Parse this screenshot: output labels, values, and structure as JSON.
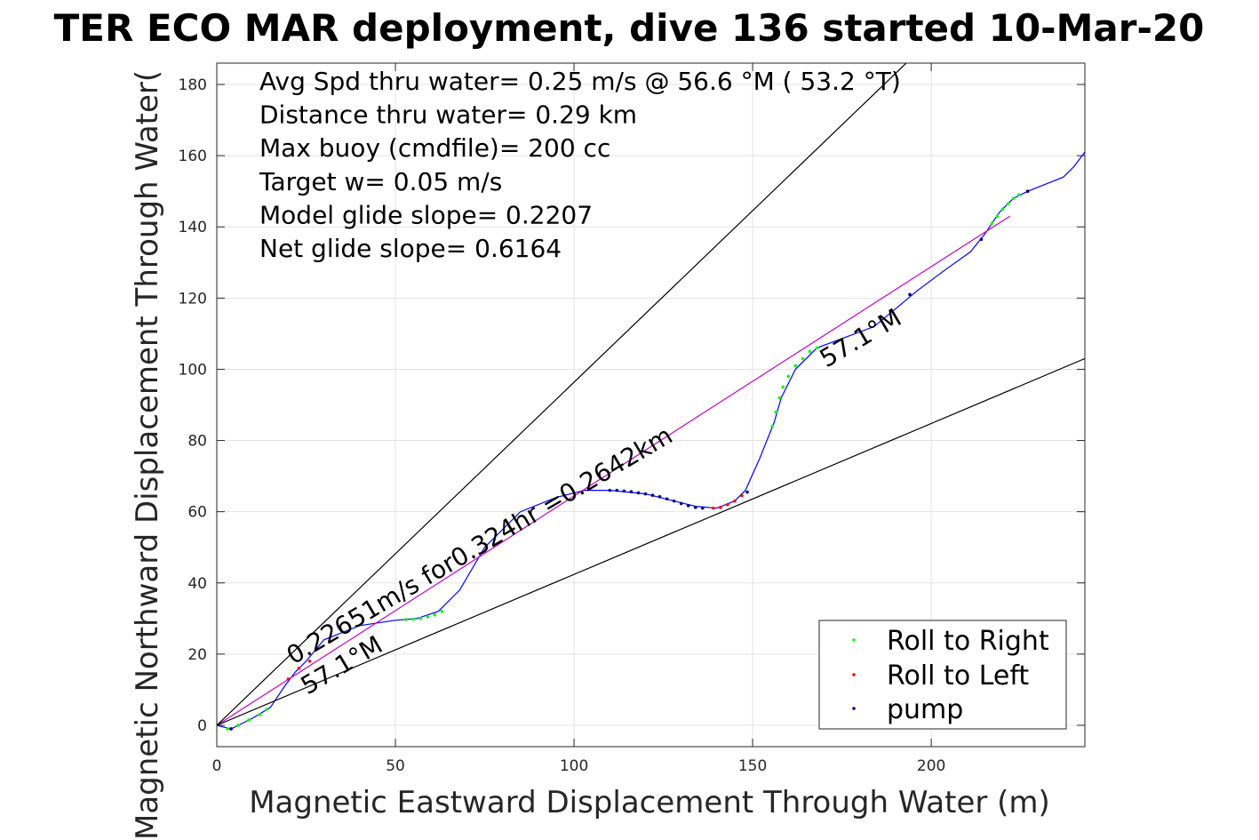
{
  "chart_data": {
    "type": "line",
    "title": "TER ECO MAR deployment, dive 136 started 10-Mar-20",
    "xlabel": "Magnetic Eastward Displacement Through Water (m)",
    "ylabel": "Magnetic Northward Displacement Through Water(",
    "xlim": [
      0,
      243
    ],
    "ylim": [
      -6,
      186
    ],
    "xticks": [
      0,
      50,
      100,
      150,
      200
    ],
    "yticks": [
      0,
      20,
      40,
      60,
      80,
      100,
      120,
      140,
      160,
      180
    ],
    "grid": true,
    "annotations": [
      "Avg Spd thru water=  0.25 m/s @  56.6 °M ( 53.2 °T)",
      "Distance thru water=  0.29 km",
      "Max buoy (cmdfile)= 200 cc",
      "Target w= 0.05 m/s",
      "Model glide slope= 0.2207",
      "Net glide slope= 0.6164"
    ],
    "rotated_labels": {
      "speed": "0.22651m/s for0.324hr =0.2642km",
      "heading_lower": "57.1°M",
      "heading_upper": "57.1°M"
    },
    "legend": {
      "placement": "bottom-right",
      "entries": [
        {
          "name": "Roll to Right",
          "color": "#00ff00"
        },
        {
          "name": "Roll to Left",
          "color": "#ff0000"
        },
        {
          "name": "pump",
          "color": "#000080"
        }
      ]
    },
    "series": [
      {
        "kind": "track",
        "color": "#0000ff",
        "x": [
          0,
          4,
          10,
          15,
          19,
          22,
          25,
          30,
          40,
          50,
          56,
          62,
          68,
          75,
          85,
          95,
          103,
          110,
          120,
          128,
          134,
          140,
          145,
          148,
          152,
          156,
          158,
          162,
          168,
          176,
          184,
          190,
          196,
          204,
          211,
          215,
          219,
          223,
          227,
          232,
          237,
          240,
          243
        ],
        "y": [
          0,
          -1,
          2,
          5,
          11,
          15,
          18,
          24,
          28,
          29.5,
          30,
          32,
          38,
          50,
          60,
          64,
          66,
          66,
          65,
          63,
          61.5,
          61,
          63,
          66,
          75,
          85,
          92,
          100,
          106,
          109,
          112,
          117,
          122,
          128,
          133,
          138,
          144,
          148,
          150,
          152,
          154,
          157,
          161
        ]
      },
      {
        "kind": "net-track",
        "color": "#c000c0",
        "x": [
          0,
          222
        ],
        "y": [
          0,
          143
        ]
      },
      {
        "kind": "envelope-upper",
        "color": "#000000",
        "x": [
          0,
          193
        ],
        "y": [
          0,
          186
        ]
      },
      {
        "kind": "envelope-lower",
        "color": "#000000",
        "x": [
          0,
          243
        ],
        "y": [
          0,
          103
        ]
      }
    ],
    "markers": {
      "roll_right": {
        "color": "#00ff00",
        "x": [
          3,
          6,
          9,
          12,
          14,
          53,
          55,
          57,
          59,
          61,
          63,
          155.5,
          156.5,
          157.5,
          158.5,
          160,
          162,
          164,
          166,
          168,
          217,
          218.5,
          220,
          221.5,
          223,
          224.5
        ],
        "y": [
          -1,
          0,
          1.5,
          3,
          4.5,
          29.7,
          29.8,
          30,
          30.5,
          31,
          32,
          84,
          88,
          92,
          95,
          98,
          101,
          103,
          105,
          106,
          141,
          143,
          145,
          146.5,
          148,
          149
        ]
      },
      "roll_left": {
        "color": "#ff0000",
        "x": [
          20,
          23,
          26,
          139,
          141,
          143,
          145,
          147
        ],
        "y": [
          13,
          16,
          18,
          61,
          61.2,
          62,
          63,
          64.5
        ]
      },
      "pump": {
        "color": "#000080",
        "x": [
          4,
          110,
          112,
          114,
          116,
          118,
          120,
          122,
          124,
          126,
          128,
          130,
          132,
          134,
          136,
          148.5,
          194,
          214,
          227
        ],
        "y": [
          -1,
          66,
          66,
          65.8,
          65.6,
          65.3,
          65,
          64.6,
          64.2,
          63.6,
          63,
          62.3,
          61.7,
          61.2,
          61,
          65.5,
          121,
          136.5,
          150
        ]
      }
    }
  }
}
